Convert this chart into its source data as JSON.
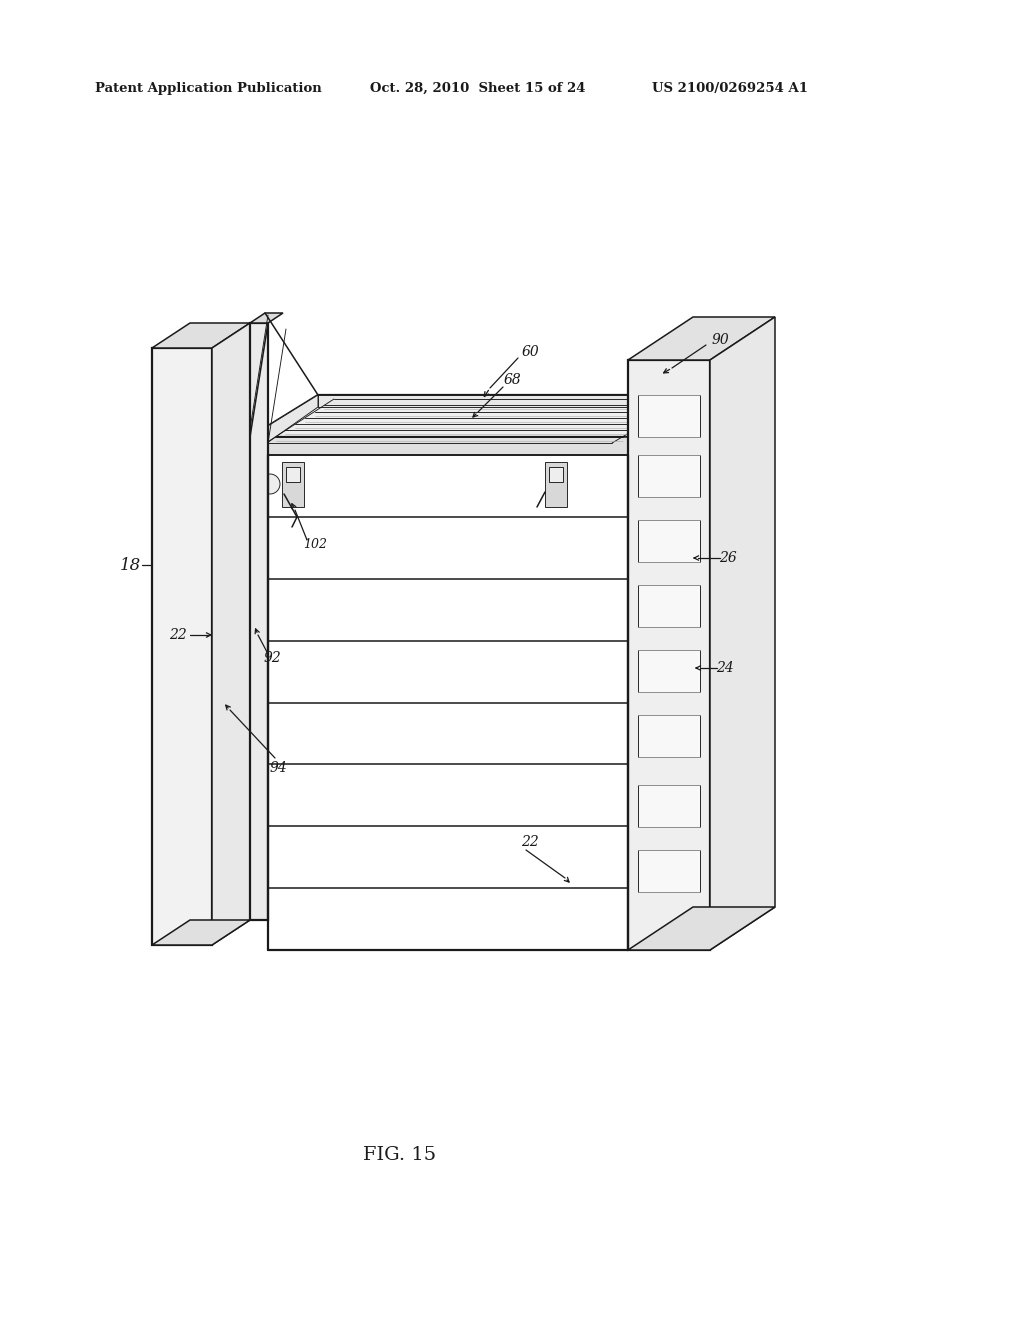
{
  "bg_color": "#ffffff",
  "line_color": "#1a1a1a",
  "fig_width": 10.24,
  "fig_height": 13.2,
  "header_left": "Patent Application Publication",
  "header_mid": "Oct. 28, 2010  Sheet 15 of 24",
  "header_right": "US 2100/0269254 A1",
  "fig_label": "FIG. 15",
  "lw_thick": 1.6,
  "lw_med": 1.1,
  "lw_thin": 0.65
}
